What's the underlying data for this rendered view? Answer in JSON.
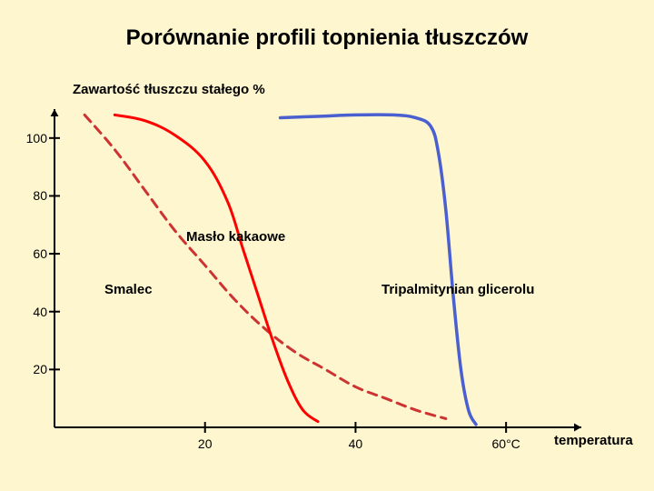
{
  "background_color": "#fdf6cf",
  "title": {
    "text": "Porównanie profili topnienia tłuszczów",
    "fontsize": 24,
    "color": "#000000"
  },
  "y_axis_title": {
    "text": "Zawartość tłuszczu stałego %",
    "fontsize": 15,
    "color": "#000000",
    "x": 80,
    "y": 90
  },
  "x_axis_title": {
    "text": "temperatura",
    "fontsize": 15,
    "color": "#000000",
    "x": 610,
    "y": 476
  },
  "plot": {
    "type": "line",
    "origin_x": 60,
    "origin_y": 470,
    "x_axis_end_x": 640,
    "y_axis_end_y": 120,
    "axis_color": "#000000",
    "axis_width": 2,
    "arrow_size": 8,
    "xlim": [
      0,
      70
    ],
    "ylim": [
      0,
      110
    ],
    "x_scale": 8.285714,
    "y_scale": 3.181818
  },
  "y_ticks": [
    {
      "value": 100,
      "label": "100"
    },
    {
      "value": 80,
      "label": "80"
    },
    {
      "value": 60,
      "label": "60"
    },
    {
      "value": 40,
      "label": "40"
    },
    {
      "value": 20,
      "label": "20"
    }
  ],
  "x_ticks": [
    {
      "value": 20,
      "label": "20"
    },
    {
      "value": 40,
      "label": "40"
    },
    {
      "value": 60,
      "label": "60°C"
    }
  ],
  "tick_fontsize": 14,
  "tick_len": 6,
  "series": [
    {
      "id": "smalec",
      "label": "Smalec",
      "label_x": 115,
      "label_y": 310,
      "label_fontsize": 15,
      "color": "#cc3333",
      "width": 3,
      "dash": "10,7",
      "points": [
        [
          4,
          108
        ],
        [
          8,
          96
        ],
        [
          12,
          82
        ],
        [
          16,
          68
        ],
        [
          20,
          56
        ],
        [
          24,
          44
        ],
        [
          28,
          34
        ],
        [
          32,
          26
        ],
        [
          36,
          20
        ],
        [
          40,
          14
        ],
        [
          44,
          10
        ],
        [
          48,
          6
        ],
        [
          52,
          3
        ]
      ]
    },
    {
      "id": "maslo-kakaowe",
      "label": "Masło kakaowe",
      "label_x": 205,
      "label_y": 252,
      "label_fontsize": 15,
      "color": "#ff0000",
      "width": 3,
      "dash": "",
      "points": [
        [
          8,
          108
        ],
        [
          12,
          106
        ],
        [
          16,
          101
        ],
        [
          20,
          92
        ],
        [
          23,
          78
        ],
        [
          25,
          62
        ],
        [
          27,
          46
        ],
        [
          29,
          30
        ],
        [
          31,
          16
        ],
        [
          33,
          6
        ],
        [
          35,
          2
        ]
      ]
    },
    {
      "id": "tripalmitynian",
      "label": "Tripalmitynian glicerolu",
      "label_x": 420,
      "label_y": 310,
      "label_fontsize": 15,
      "color": "#4a5fd0",
      "width": 3.5,
      "dash": "",
      "points": [
        [
          30,
          107
        ],
        [
          35,
          107.5
        ],
        [
          40,
          108
        ],
        [
          45,
          108
        ],
        [
          48,
          107
        ],
        [
          50,
          104
        ],
        [
          51,
          95
        ],
        [
          52,
          75
        ],
        [
          53,
          45
        ],
        [
          54,
          20
        ],
        [
          55,
          6
        ],
        [
          56,
          1
        ]
      ]
    }
  ]
}
